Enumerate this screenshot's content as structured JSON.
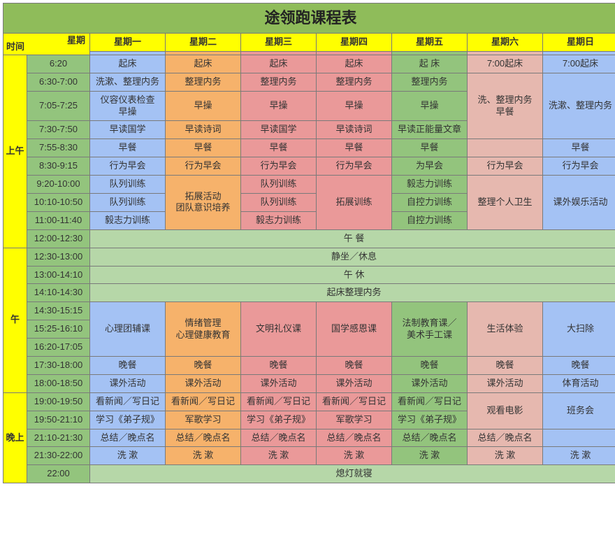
{
  "colors": {
    "title_bg": "#8fbc5a",
    "header_bg": "#ffff00",
    "time_bg": "#93c47d",
    "blue": "#a4c2f4",
    "orange": "#f6b26b",
    "pink": "#ea9999",
    "green": "#93c47d",
    "lgreen": "#b6d7a8",
    "tan": "#e6b8af",
    "border": "#7a7a7a"
  },
  "title": "途领跑课程表",
  "corner": {
    "top": "星期",
    "left": "时间"
  },
  "days": [
    "星期一",
    "星期二",
    "星期三",
    "星期四",
    "星期五",
    "星期六",
    "星期日"
  ],
  "periods": {
    "morning": "上午",
    "noon": "午",
    "evening": "晚上"
  },
  "times": {
    "t1": "6:20",
    "t2": "6:30-7:00",
    "t3": "7:05-7:25",
    "t4": "7:30-7:50",
    "t5": "7:55-8:30",
    "t6": "8:30-9:15",
    "t7": "9:20-10:00",
    "t8": "10:10-10:50",
    "t9": "11:00-11:40",
    "t10": "12:00-12:30",
    "t11": "12:30-13:00",
    "t12": "13:00-14:10",
    "t13": "14:10-14:30",
    "t14": "14:30-15:15",
    "t15": "15:25-16:10",
    "t16": "16:20-17:05",
    "t17": "17:30-18:00",
    "t18": "18:00-18:50",
    "t19": "19:00-19:50",
    "t20": "19:50-21:10",
    "t21": "21:10-21:30",
    "t22": "21:30-22:00",
    "t23": "22:00"
  },
  "cells": {
    "wake_mon": "起床",
    "wake_tue": "起床",
    "wake_wed": "起床",
    "wake_thu": "起床",
    "wake_fri": "起 床",
    "wake_sat": "7:00起床",
    "wake_sun": "7:00起床",
    "wash_mon": "洗漱、整理内务",
    "tidy": "整理内务",
    "wash_sat": "洗、整理内务\n早餐",
    "wash_sun": "洗漱、整理内务",
    "appear": "仪容仪表检查\n早操",
    "drill": "早操",
    "read_guoxue": "早读国学",
    "read_shici": "早读诗词",
    "read_zhnl": "早读正能量文章",
    "breakfast": "早餐",
    "behave": "行为早会",
    "behave_fri": "为早会",
    "queue": "队列训练",
    "expand_tue": "拓展活动\n团队意识培养",
    "expand_thu": "拓展训练",
    "will": "毅志力训练",
    "selfctrl": "自控力训练",
    "hygiene": "整理个人卫生",
    "outclass_fun": "课外娱乐活动",
    "lunch": "午 餐",
    "sit": "静坐／休息",
    "nap": "午 休",
    "wake_tidy": "起床整理内务",
    "psych": "心理团辅课",
    "emotion": "情绪管理\n心理健康教育",
    "civ": "文明礼仪课",
    "guoxue_course": "国学感恩课",
    "law_art": "法制教育课／\n美术手工课",
    "life_exp": "生活体验",
    "clean": "大扫除",
    "dinner": "晚餐",
    "outclass": "课外活动",
    "sport": "体育活动",
    "news": "看新闻／写日记",
    "dizigui": "学习《弟子规》",
    "armysong": "军歌学习",
    "summary": "总结／晚点名",
    "wash_n": "洗 漱",
    "lights_out": "熄灯就寝",
    "movie": "观看电影",
    "meeting": "班务会"
  }
}
